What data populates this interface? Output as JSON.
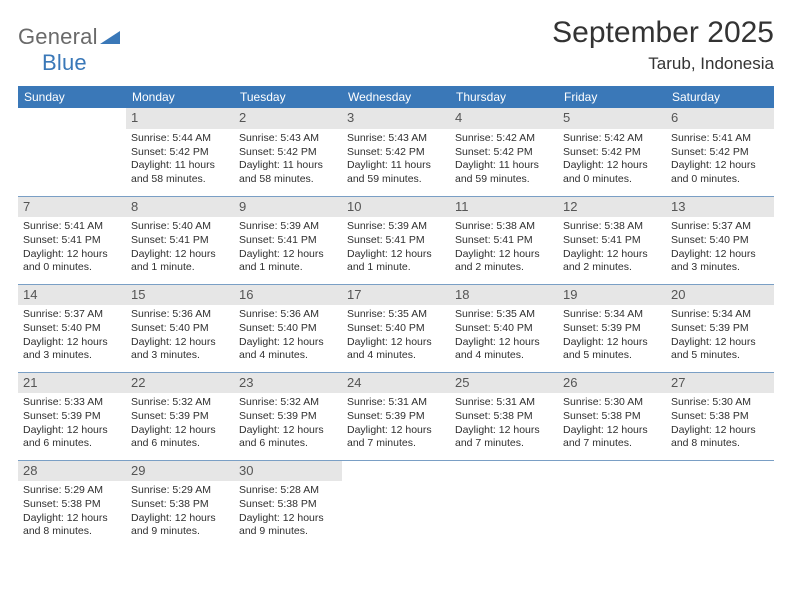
{
  "logo": {
    "word1": "General",
    "word2": "Blue",
    "text_color": "#6a6a6a",
    "accent_color": "#3a78b8"
  },
  "title": "September 2025",
  "location": "Tarub, Indonesia",
  "header_bg": "#3a78b8",
  "header_text_color": "#ffffff",
  "row_divider_color": "#7a9fc5",
  "daynum_bg": "#e6e6e6",
  "weekdays": [
    "Sunday",
    "Monday",
    "Tuesday",
    "Wednesday",
    "Thursday",
    "Friday",
    "Saturday"
  ],
  "weeks": [
    [
      null,
      {
        "n": "1",
        "sunrise": "5:44 AM",
        "sunset": "5:42 PM",
        "daylight": "11 hours and 58 minutes."
      },
      {
        "n": "2",
        "sunrise": "5:43 AM",
        "sunset": "5:42 PM",
        "daylight": "11 hours and 58 minutes."
      },
      {
        "n": "3",
        "sunrise": "5:43 AM",
        "sunset": "5:42 PM",
        "daylight": "11 hours and 59 minutes."
      },
      {
        "n": "4",
        "sunrise": "5:42 AM",
        "sunset": "5:42 PM",
        "daylight": "11 hours and 59 minutes."
      },
      {
        "n": "5",
        "sunrise": "5:42 AM",
        "sunset": "5:42 PM",
        "daylight": "12 hours and 0 minutes."
      },
      {
        "n": "6",
        "sunrise": "5:41 AM",
        "sunset": "5:42 PM",
        "daylight": "12 hours and 0 minutes."
      }
    ],
    [
      {
        "n": "7",
        "sunrise": "5:41 AM",
        "sunset": "5:41 PM",
        "daylight": "12 hours and 0 minutes."
      },
      {
        "n": "8",
        "sunrise": "5:40 AM",
        "sunset": "5:41 PM",
        "daylight": "12 hours and 1 minute."
      },
      {
        "n": "9",
        "sunrise": "5:39 AM",
        "sunset": "5:41 PM",
        "daylight": "12 hours and 1 minute."
      },
      {
        "n": "10",
        "sunrise": "5:39 AM",
        "sunset": "5:41 PM",
        "daylight": "12 hours and 1 minute."
      },
      {
        "n": "11",
        "sunrise": "5:38 AM",
        "sunset": "5:41 PM",
        "daylight": "12 hours and 2 minutes."
      },
      {
        "n": "12",
        "sunrise": "5:38 AM",
        "sunset": "5:41 PM",
        "daylight": "12 hours and 2 minutes."
      },
      {
        "n": "13",
        "sunrise": "5:37 AM",
        "sunset": "5:40 PM",
        "daylight": "12 hours and 3 minutes."
      }
    ],
    [
      {
        "n": "14",
        "sunrise": "5:37 AM",
        "sunset": "5:40 PM",
        "daylight": "12 hours and 3 minutes."
      },
      {
        "n": "15",
        "sunrise": "5:36 AM",
        "sunset": "5:40 PM",
        "daylight": "12 hours and 3 minutes."
      },
      {
        "n": "16",
        "sunrise": "5:36 AM",
        "sunset": "5:40 PM",
        "daylight": "12 hours and 4 minutes."
      },
      {
        "n": "17",
        "sunrise": "5:35 AM",
        "sunset": "5:40 PM",
        "daylight": "12 hours and 4 minutes."
      },
      {
        "n": "18",
        "sunrise": "5:35 AM",
        "sunset": "5:40 PM",
        "daylight": "12 hours and 4 minutes."
      },
      {
        "n": "19",
        "sunrise": "5:34 AM",
        "sunset": "5:39 PM",
        "daylight": "12 hours and 5 minutes."
      },
      {
        "n": "20",
        "sunrise": "5:34 AM",
        "sunset": "5:39 PM",
        "daylight": "12 hours and 5 minutes."
      }
    ],
    [
      {
        "n": "21",
        "sunrise": "5:33 AM",
        "sunset": "5:39 PM",
        "daylight": "12 hours and 6 minutes."
      },
      {
        "n": "22",
        "sunrise": "5:32 AM",
        "sunset": "5:39 PM",
        "daylight": "12 hours and 6 minutes."
      },
      {
        "n": "23",
        "sunrise": "5:32 AM",
        "sunset": "5:39 PM",
        "daylight": "12 hours and 6 minutes."
      },
      {
        "n": "24",
        "sunrise": "5:31 AM",
        "sunset": "5:39 PM",
        "daylight": "12 hours and 7 minutes."
      },
      {
        "n": "25",
        "sunrise": "5:31 AM",
        "sunset": "5:38 PM",
        "daylight": "12 hours and 7 minutes."
      },
      {
        "n": "26",
        "sunrise": "5:30 AM",
        "sunset": "5:38 PM",
        "daylight": "12 hours and 7 minutes."
      },
      {
        "n": "27",
        "sunrise": "5:30 AM",
        "sunset": "5:38 PM",
        "daylight": "12 hours and 8 minutes."
      }
    ],
    [
      {
        "n": "28",
        "sunrise": "5:29 AM",
        "sunset": "5:38 PM",
        "daylight": "12 hours and 8 minutes."
      },
      {
        "n": "29",
        "sunrise": "5:29 AM",
        "sunset": "5:38 PM",
        "daylight": "12 hours and 9 minutes."
      },
      {
        "n": "30",
        "sunrise": "5:28 AM",
        "sunset": "5:38 PM",
        "daylight": "12 hours and 9 minutes."
      },
      null,
      null,
      null,
      null
    ]
  ],
  "labels": {
    "sunrise": "Sunrise:",
    "sunset": "Sunset:",
    "daylight": "Daylight:"
  }
}
